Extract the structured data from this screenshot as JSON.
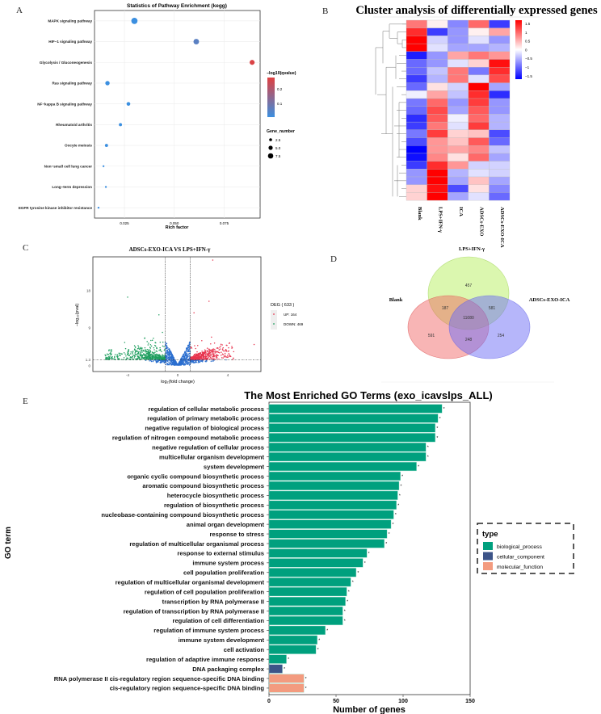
{
  "panels": {
    "A": "A",
    "B": "B",
    "C": "C",
    "D": "D",
    "E": "E"
  },
  "chart_data": [
    {
      "id": "kegg",
      "type": "scatter",
      "title": "Statistics of Pathway Enrichment (kegg)",
      "xlabel": "Rich factor",
      "ylabel": "",
      "xlim": [
        0.01,
        0.093
      ],
      "xticks": [
        0.025,
        0.05,
        0.075
      ],
      "xtick_labels": [
        "0.025",
        "0.050",
        "0.075"
      ],
      "grid": true,
      "categories": [
        "MAPK signaling pathway",
        "HIF−1 signaling pathway",
        "Glycolysis / Gluconeogenesis",
        "Ras signaling pathway",
        "NF−kappa B signaling pathway",
        "Rheumatoid arthritis",
        "Oocyte meiosis",
        "Non−small cell lung cancer",
        "Long−term depression",
        "EGFR tyrosine kinase inhibitor resistance"
      ],
      "rich_factor": [
        0.03,
        0.061,
        0.089,
        0.0165,
        0.027,
        0.023,
        0.016,
        0.0145,
        0.0157,
        0.012
      ],
      "qvalue_neglog10": [
        0.0,
        0.05,
        0.26,
        0.0,
        0.0,
        0.0,
        0.0,
        0.0,
        0.0,
        0.0
      ],
      "gene_number": [
        8,
        7,
        6,
        5,
        4,
        3,
        3,
        1,
        1,
        1
      ],
      "color_legend": {
        "title": "−log10(qvalue)",
        "ticks": [
          "0.2",
          "0.1"
        ],
        "low": "#3b8fe0",
        "high": "#e04040",
        "range": [
          0,
          0.27
        ]
      },
      "size_legend": {
        "title": "Gene_number",
        "items": [
          "2.5",
          "5.0",
          "7.5"
        ]
      },
      "legend_position": "right"
    },
    {
      "id": "heatmap",
      "type": "heatmap",
      "title": "Cluster analysis of differentially expressed genes",
      "columns": [
        "Blank",
        "LPS+IFN-γ",
        "ICA",
        "ADSCs-EXO",
        "ADSCs-EXO-ICA"
      ],
      "values": [
        [
          0.9,
          0.1,
          -0.8,
          1.0,
          -1.3
        ],
        [
          1.4,
          -1.3,
          -0.7,
          0.1,
          0.6
        ],
        [
          1.7,
          -0.3,
          -0.7,
          -0.2,
          -0.7
        ],
        [
          1.7,
          -0.2,
          -0.6,
          -0.6,
          -0.5
        ],
        [
          -1.5,
          -0.7,
          0.6,
          0.9,
          0.7
        ],
        [
          -1.0,
          -0.7,
          -0.2,
          0.3,
          1.6
        ],
        [
          -1.0,
          -0.4,
          0.9,
          -0.9,
          1.4
        ],
        [
          -1.3,
          -0.5,
          0.9,
          -0.2,
          1.2
        ],
        [
          -1.0,
          0.2,
          -0.3,
          1.7,
          -0.6
        ],
        [
          -0.1,
          0.6,
          -0.4,
          1.4,
          -1.4
        ],
        [
          -0.9,
          1.0,
          -0.7,
          1.3,
          -0.7
        ],
        [
          -1.0,
          1.2,
          -0.6,
          1.1,
          -0.7
        ],
        [
          -1.4,
          1.1,
          -0.1,
          1.0,
          -0.5
        ],
        [
          -1.3,
          0.9,
          -0.2,
          1.3,
          -0.5
        ],
        [
          -0.9,
          1.3,
          0.3,
          0.4,
          -1.2
        ],
        [
          -1.2,
          0.7,
          0.4,
          1.1,
          -1.0
        ],
        [
          -1.7,
          0.7,
          0.6,
          0.8,
          -0.4
        ],
        [
          -1.6,
          0.8,
          0.2,
          1.0,
          -0.6
        ],
        [
          -1.3,
          1.4,
          0.7,
          -0.3,
          -0.3
        ],
        [
          -0.7,
          1.8,
          -0.5,
          -0.2,
          -0.3
        ],
        [
          -0.7,
          1.7,
          -0.6,
          0.4,
          -0.6
        ],
        [
          0.3,
          1.6,
          -1.2,
          0.2,
          -0.8
        ],
        [
          0.3,
          1.7,
          -0.6,
          -0.2,
          -1.0
        ]
      ],
      "scale_ticks": [
        "1.5",
        "1",
        "0.5",
        "0",
        "−0.5",
        "−1",
        "−1.5"
      ],
      "range": [
        -1.7,
        1.7
      ],
      "legend_position": "right"
    },
    {
      "id": "volcano",
      "type": "scatter",
      "title": "ADSCs-EXO-ICA VS LPS+IFN-γ",
      "xlabel": "log₂(fold change)",
      "ylabel": "−log₁₀(pval)",
      "xlim": [
        -7,
        6.7
      ],
      "ylim": [
        -0.5,
        26
      ],
      "xticks": [
        "-4",
        "0",
        "4"
      ],
      "yticks": [
        "0",
        "1.3",
        "9",
        "18"
      ],
      "thresholds": {
        "pval_neglog10": 1.3,
        "fold_change": [
          -1,
          1
        ]
      },
      "legend": {
        "title": "DEG ( 633 )",
        "up": "UP: 164",
        "down": "DOWN: 469"
      },
      "counts": {
        "deg": 633,
        "up": 164,
        "down": 469
      },
      "notable_points": [
        [
          2.8,
          25.5
        ],
        [
          -4.0,
          16.5
        ],
        [
          2.5,
          15.5
        ],
        [
          1.3,
          12.7
        ],
        [
          -1.5,
          12.2
        ],
        [
          2.7,
          6.8
        ],
        [
          6.1,
          5.0
        ]
      ],
      "colors": {
        "up": "#e8344e",
        "down": "#1e9e5e",
        "ns": "#2b6fd0"
      },
      "legend_position": "right"
    },
    {
      "id": "venn",
      "type": "venn",
      "sets": [
        "Blank",
        "LPS+IFN-γ",
        "ADSCs-EXO-ICA"
      ],
      "regions": {
        "only_lps": "457",
        "blank_lps": "187",
        "lps_exoica": "581",
        "all": "11080",
        "only_blank": "591",
        "blank_exoica": "248",
        "only_exoica": "254"
      }
    },
    {
      "id": "go",
      "type": "bar",
      "title": "The Most Enriched GO Terms (exo_icavslps_ALL)",
      "xlabel": "Number of genes",
      "ylabel": "GO term",
      "xlim": [
        0,
        150
      ],
      "xticks": [
        "0",
        "50",
        "100",
        "150"
      ],
      "categories": [
        "regulation of cellular metabolic process",
        "regulation of primary metabolic process",
        "negative regulation of biological process",
        "regulation of nitrogen compound metabolic process",
        "negative regulation of cellular process",
        "multicellular organism development",
        "system development",
        "organic cyclic compound biosynthetic process",
        "aromatic compound biosynthetic process",
        "heterocycle biosynthetic process",
        "regulation of biosynthetic process",
        "nucleobase-containing compound biosynthetic process",
        "animal organ development",
        "response to stress",
        "regulation of multicellular organismal process",
        "response to external stimulus",
        "immune system process",
        "cell population proliferation",
        "regulation of multicellular organismal development",
        "regulation of cell population proliferation",
        "transcription by RNA polymerase II",
        "regulation of transcription by RNA polymerase II",
        "regulation of cell differentiation",
        "regulation of immune system process",
        "immune system development",
        "cell activation",
        "regulation of adaptive immune response",
        "DNA packaging complex",
        "RNA polymerase II cis-regulatory region sequence-specific DNA binding",
        "cis-regulatory region sequence-specific DNA binding"
      ],
      "values": [
        129,
        126,
        124,
        124,
        117,
        117,
        110,
        98,
        97,
        96,
        95,
        93,
        91,
        88,
        86,
        73,
        70,
        65,
        61,
        58,
        57,
        55,
        55,
        42,
        36,
        35,
        13,
        10,
        26,
        26
      ],
      "types": [
        "bp",
        "bp",
        "bp",
        "bp",
        "bp",
        "bp",
        "bp",
        "bp",
        "bp",
        "bp",
        "bp",
        "bp",
        "bp",
        "bp",
        "bp",
        "bp",
        "bp",
        "bp",
        "bp",
        "bp",
        "bp",
        "bp",
        "bp",
        "bp",
        "bp",
        "bp",
        "bp",
        "cc",
        "mf",
        "mf"
      ],
      "annotation": "*",
      "legend": {
        "title": "type",
        "items": [
          {
            "key": "bp",
            "label": "biological_process",
            "color": "#00a07e"
          },
          {
            "key": "cc",
            "label": "cellular_component",
            "color": "#3c5488"
          },
          {
            "key": "mf",
            "label": "molecular_function",
            "color": "#f39b7f"
          }
        ]
      },
      "legend_position": "right"
    }
  ]
}
